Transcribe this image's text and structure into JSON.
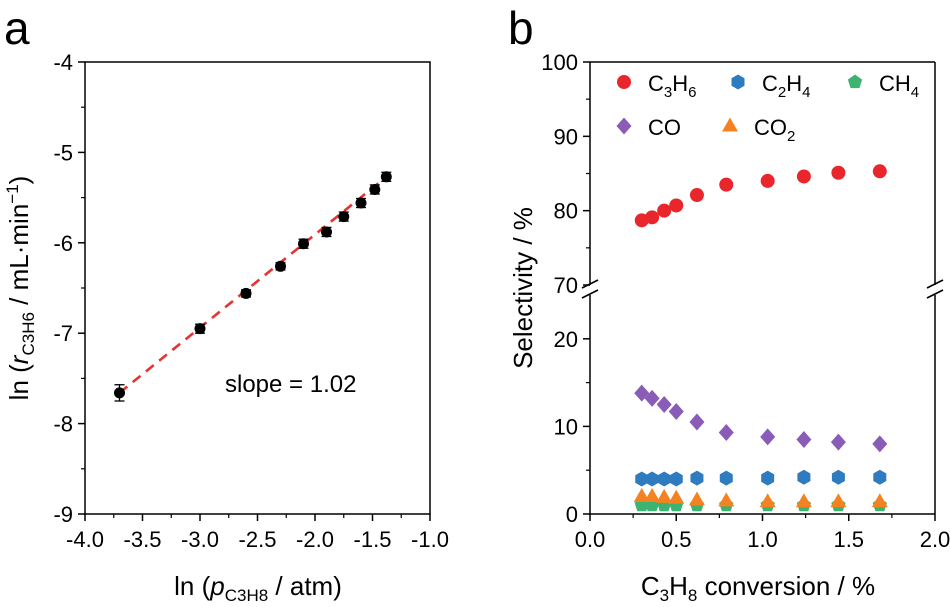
{
  "chart_data": [
    {
      "type": "scatter",
      "panel_label": "a",
      "xlabel": "ln (pC3H8 / atm)",
      "xlabel_parts": {
        "pre": "ln (",
        "var": "p",
        "sub": "C3H8",
        "post": " / atm)"
      },
      "ylabel": "ln (rC3H6 / mL·min−1)",
      "ylabel_parts": {
        "pre": "ln (",
        "var": "r",
        "sub": "C3H6",
        "mid": " / mL·min",
        "sup": "−1",
        "post": ")"
      },
      "xlim": [
        -4.0,
        -1.0
      ],
      "ylim": [
        -9,
        -4
      ],
      "xticks": [
        -4.0,
        -3.5,
        -3.0,
        -2.5,
        -2.0,
        -1.5,
        -1.0
      ],
      "xtick_labels": [
        "-4.0",
        "-3.5",
        "-3.0",
        "-2.5",
        "-2.0",
        "-1.5",
        "-1.0"
      ],
      "yticks": [
        -9,
        -8,
        -7,
        -6,
        -5,
        -4
      ],
      "ytick_labels": [
        "-9",
        "-8",
        "-7",
        "-6",
        "-5",
        "-4"
      ],
      "series": [
        {
          "name": "data",
          "x": [
            -3.7,
            -3.0,
            -2.6,
            -2.3,
            -2.1,
            -1.9,
            -1.75,
            -1.6,
            -1.48,
            -1.38
          ],
          "y": [
            -7.66,
            -6.95,
            -6.56,
            -6.26,
            -6.01,
            -5.88,
            -5.71,
            -5.56,
            -5.41,
            -5.27
          ],
          "err": [
            0.09,
            0.05,
            0.04,
            0.04,
            0.05,
            0.05,
            0.05,
            0.05,
            0.05,
            0.05
          ]
        }
      ],
      "fit": {
        "x": [
          -3.7,
          -1.38
        ],
        "y": [
          -7.66,
          -5.27
        ],
        "style": "dashed",
        "color": "#e63232"
      },
      "annotation": "slope = 1.02"
    },
    {
      "type": "scatter",
      "panel_label": "b",
      "xlabel": "C3H8 conversion / %",
      "ylabel": "Selectivity / %",
      "xlim": [
        0.0,
        2.0
      ],
      "xticks": [
        0.0,
        0.5,
        1.0,
        1.5,
        2.0
      ],
      "xtick_labels": [
        "0.0",
        "0.5",
        "1.0",
        "1.5",
        "2.0"
      ],
      "ylim_upper": [
        70,
        100
      ],
      "ylim_lower": [
        0,
        25
      ],
      "yticks": [
        0,
        10,
        20,
        70,
        80,
        90,
        100
      ],
      "ytick_labels": [
        "0",
        "10",
        "20",
        "70",
        "80",
        "90",
        "100"
      ],
      "x": [
        0.3,
        0.36,
        0.43,
        0.5,
        0.62,
        0.79,
        1.03,
        1.24,
        1.44,
        1.68
      ],
      "series": [
        {
          "name": "C3H6",
          "marker": "circle",
          "color": "#e8262c",
          "values": [
            78.7,
            79.1,
            80.0,
            80.7,
            82.1,
            83.5,
            84.0,
            84.6,
            85.1,
            85.3
          ]
        },
        {
          "name": "C2H4",
          "marker": "hexagon",
          "color": "#2f7bbf",
          "values": [
            4.0,
            4.0,
            4.0,
            4.0,
            4.1,
            4.1,
            4.1,
            4.2,
            4.2,
            4.2
          ]
        },
        {
          "name": "CH4",
          "marker": "pentagon",
          "color": "#3cb371",
          "values": [
            1.0,
            1.0,
            1.0,
            1.0,
            1.0,
            1.0,
            1.0,
            1.0,
            1.0,
            1.0
          ]
        },
        {
          "name": "CO",
          "marker": "diamond",
          "color": "#8a5cb8",
          "values": [
            13.8,
            13.2,
            12.5,
            11.7,
            10.5,
            9.3,
            8.8,
            8.5,
            8.2,
            8.0
          ]
        },
        {
          "name": "CO2",
          "marker": "triangle",
          "color": "#f58220",
          "values": [
            2.0,
            2.0,
            1.9,
            1.8,
            1.6,
            1.5,
            1.4,
            1.4,
            1.4,
            1.4
          ]
        }
      ],
      "legend": [
        {
          "name": "C3H6",
          "base": "C",
          "s1": "3",
          "mid": "H",
          "s2": "6"
        },
        {
          "name": "C2H4",
          "base": "C",
          "s1": "2",
          "mid": "H",
          "s2": "4"
        },
        {
          "name": "CH4",
          "base": "CH",
          "s1": "4",
          "mid": "",
          "s2": ""
        },
        {
          "name": "CO",
          "base": "CO",
          "s1": "",
          "mid": "",
          "s2": ""
        },
        {
          "name": "CO2",
          "base": "CO",
          "s1": "2",
          "mid": "",
          "s2": ""
        }
      ],
      "xlabel_parts": {
        "pre": "C",
        "s1": "3",
        "mid": "H",
        "s2": "8",
        "post": " conversion / %"
      },
      "legend_location": "top",
      "axis_break": true
    }
  ]
}
